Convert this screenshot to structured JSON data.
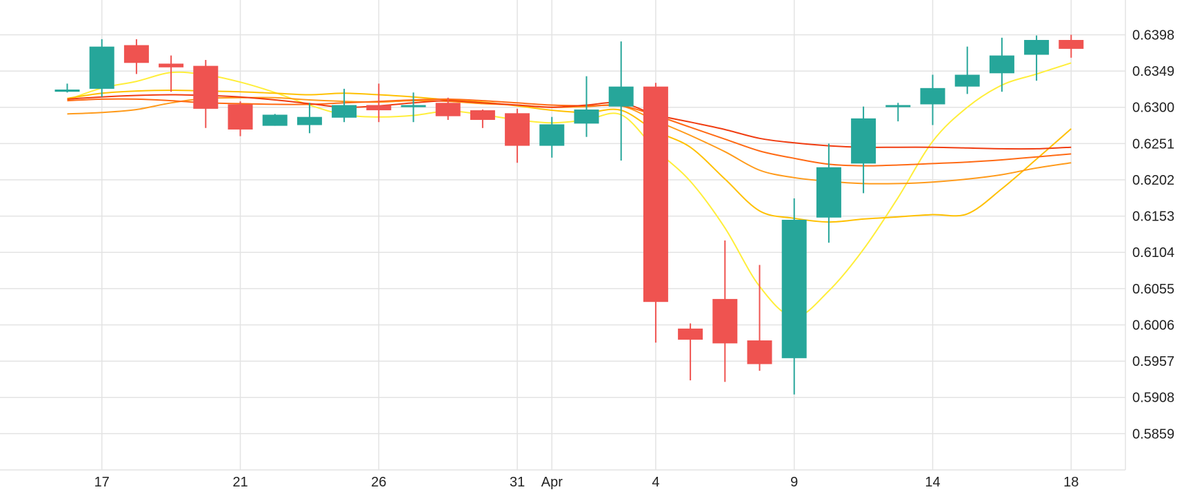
{
  "chart_data": {
    "type": "candlestick",
    "title": "",
    "xlabel": "",
    "ylabel": "",
    "ylim": [
      0.581,
      0.6445
    ],
    "grid": true,
    "y_ticks": [
      "0.6398",
      "0.6349",
      "0.6300",
      "0.6251",
      "0.6202",
      "0.6153",
      "0.6104",
      "0.6055",
      "0.6006",
      "0.5957",
      "0.5908",
      "0.5859"
    ],
    "x_ticks": [
      {
        "index": 1,
        "label": "17"
      },
      {
        "index": 5,
        "label": "21"
      },
      {
        "index": 9,
        "label": "26"
      },
      {
        "index": 13,
        "label": "31"
      },
      {
        "index": 14,
        "label": "Apr"
      },
      {
        "index": 17,
        "label": "4"
      },
      {
        "index": 21,
        "label": "9"
      },
      {
        "index": 25,
        "label": "14"
      },
      {
        "index": 29,
        "label": "18"
      }
    ],
    "colors": {
      "up": "#26a69a",
      "down": "#ef5350",
      "grid": "#e3e3e3"
    },
    "candles": [
      {
        "open": 0.6321,
        "high": 0.6332,
        "low": 0.632,
        "close": 0.6324
      },
      {
        "open": 0.6325,
        "high": 0.6392,
        "low": 0.6314,
        "close": 0.6382
      },
      {
        "open": 0.6384,
        "high": 0.6392,
        "low": 0.6345,
        "close": 0.636
      },
      {
        "open": 0.6359,
        "high": 0.637,
        "low": 0.6321,
        "close": 0.6354
      },
      {
        "open": 0.6356,
        "high": 0.6364,
        "low": 0.6272,
        "close": 0.6298
      },
      {
        "open": 0.6304,
        "high": 0.6308,
        "low": 0.6261,
        "close": 0.627
      },
      {
        "open": 0.6275,
        "high": 0.6291,
        "low": 0.6275,
        "close": 0.629
      },
      {
        "open": 0.6276,
        "high": 0.6306,
        "low": 0.6265,
        "close": 0.6287
      },
      {
        "open": 0.6286,
        "high": 0.6325,
        "low": 0.628,
        "close": 0.6303
      },
      {
        "open": 0.6303,
        "high": 0.6332,
        "low": 0.628,
        "close": 0.6296
      },
      {
        "open": 0.6301,
        "high": 0.632,
        "low": 0.628,
        "close": 0.6303
      },
      {
        "open": 0.6306,
        "high": 0.6313,
        "low": 0.6283,
        "close": 0.6288
      },
      {
        "open": 0.6296,
        "high": 0.6297,
        "low": 0.6272,
        "close": 0.6283
      },
      {
        "open": 0.6292,
        "high": 0.6298,
        "low": 0.6225,
        "close": 0.6248
      },
      {
        "open": 0.6248,
        "high": 0.6287,
        "low": 0.6232,
        "close": 0.6277
      },
      {
        "open": 0.6278,
        "high": 0.6342,
        "low": 0.626,
        "close": 0.6297
      },
      {
        "open": 0.6301,
        "high": 0.6389,
        "low": 0.6228,
        "close": 0.6328
      },
      {
        "open": 0.6328,
        "high": 0.6333,
        "low": 0.5982,
        "close": 0.6037
      },
      {
        "open": 0.6001,
        "high": 0.6008,
        "low": 0.5931,
        "close": 0.5986
      },
      {
        "open": 0.6041,
        "high": 0.612,
        "low": 0.5929,
        "close": 0.5981
      },
      {
        "open": 0.5985,
        "high": 0.6087,
        "low": 0.5944,
        "close": 0.5953
      },
      {
        "open": 0.5961,
        "high": 0.6177,
        "low": 0.5912,
        "close": 0.6148
      },
      {
        "open": 0.6151,
        "high": 0.6251,
        "low": 0.6117,
        "close": 0.6219
      },
      {
        "open": 0.6224,
        "high": 0.6301,
        "low": 0.6184,
        "close": 0.6285
      },
      {
        "open": 0.6302,
        "high": 0.6306,
        "low": 0.6281,
        "close": 0.6303
      },
      {
        "open": 0.6304,
        "high": 0.6344,
        "low": 0.6276,
        "close": 0.6326
      },
      {
        "open": 0.6328,
        "high": 0.6382,
        "low": 0.6318,
        "close": 0.6344
      },
      {
        "open": 0.6346,
        "high": 0.6394,
        "low": 0.6321,
        "close": 0.637
      },
      {
        "open": 0.6371,
        "high": 0.6397,
        "low": 0.6336,
        "close": 0.6391
      },
      {
        "open": 0.6391,
        "high": 0.6398,
        "low": 0.6367,
        "close": 0.6379
      }
    ],
    "moving_averages": [
      {
        "color": "#ffee3a",
        "values": [
          0.631,
          0.6326,
          0.6335,
          0.6347,
          0.6344,
          0.6334,
          0.632,
          0.6303,
          0.629,
          0.6287,
          0.6289,
          0.6295,
          0.629,
          0.6283,
          0.6279,
          0.6283,
          0.629,
          0.6243,
          0.62,
          0.6137,
          0.6058,
          0.6017,
          0.6052,
          0.6108,
          0.6178,
          0.6254,
          0.63,
          0.633,
          0.6345,
          0.636
        ]
      },
      {
        "color": "#ffc000",
        "values": [
          0.6312,
          0.6319,
          0.6322,
          0.6323,
          0.6322,
          0.6321,
          0.6319,
          0.6317,
          0.6319,
          0.6317,
          0.6314,
          0.631,
          0.6307,
          0.6302,
          0.6296,
          0.6293,
          0.6296,
          0.6268,
          0.6246,
          0.6203,
          0.616,
          0.615,
          0.6145,
          0.6149,
          0.6152,
          0.6155,
          0.6156,
          0.619,
          0.623,
          0.6271
        ]
      },
      {
        "color": "#ff9a1a",
        "values": [
          0.6291,
          0.6293,
          0.6297,
          0.6306,
          0.6312,
          0.6313,
          0.6313,
          0.631,
          0.6308,
          0.6307,
          0.6309,
          0.6308,
          0.6305,
          0.6303,
          0.63,
          0.6301,
          0.6302,
          0.6282,
          0.6262,
          0.624,
          0.6215,
          0.6205,
          0.62,
          0.6197,
          0.6197,
          0.6199,
          0.6203,
          0.6209,
          0.6218,
          0.6225
        ]
      },
      {
        "color": "#ff6a14",
        "values": [
          0.6309,
          0.6311,
          0.6311,
          0.6309,
          0.6306,
          0.6305,
          0.6304,
          0.6304,
          0.6306,
          0.6308,
          0.631,
          0.6311,
          0.6309,
          0.6306,
          0.6303,
          0.6302,
          0.6302,
          0.6289,
          0.6273,
          0.6257,
          0.6241,
          0.6231,
          0.6223,
          0.6221,
          0.6222,
          0.6224,
          0.6226,
          0.6229,
          0.6233,
          0.6237
        ]
      },
      {
        "color": "#f03c10",
        "values": [
          0.6311,
          0.6314,
          0.6316,
          0.6317,
          0.6316,
          0.6314,
          0.631,
          0.6305,
          0.63,
          0.6302,
          0.6306,
          0.6309,
          0.6306,
          0.6303,
          0.63,
          0.6303,
          0.6306,
          0.629,
          0.628,
          0.627,
          0.6258,
          0.6252,
          0.6248,
          0.6246,
          0.6246,
          0.6246,
          0.6245,
          0.6244,
          0.6244,
          0.6246
        ]
      }
    ]
  }
}
